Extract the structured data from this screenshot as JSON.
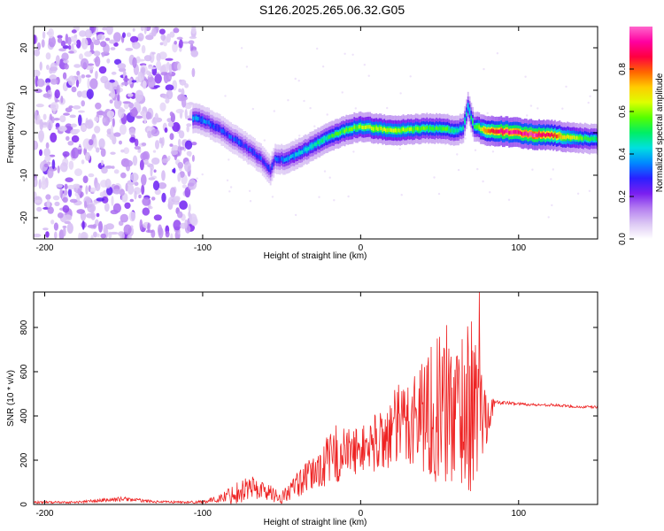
{
  "title": "S126.2025.265.06.32.G05",
  "colors": {
    "snr_line": "#ee2222",
    "frame": "#000000",
    "background": "#ffffff",
    "colormap": [
      "#ffffff",
      "#dcc8f4",
      "#b57ff0",
      "#7a1ff0",
      "#2a20ff",
      "#0088ff",
      "#00e0e0",
      "#00ee66",
      "#55ff00",
      "#ddff00",
      "#ffcc00",
      "#ff6600",
      "#ff0040",
      "#ff00a0",
      "#ff66cc"
    ]
  },
  "chart_data": [
    {
      "type": "heatmap",
      "title": "S126.2025.265.06.32.G05",
      "xlabel": "Height of straight line (km)",
      "ylabel": "Frequency (Hz)",
      "xlim": [
        -207,
        150
      ],
      "ylim": [
        -25,
        25
      ],
      "xticks": [
        "-200",
        "-100",
        "0",
        "100"
      ],
      "xtick_values": [
        -200,
        -100,
        0,
        100
      ],
      "yticks": [
        "-20",
        "-10",
        "0",
        "10",
        "20"
      ],
      "ytick_values": [
        -20,
        -10,
        0,
        10,
        20
      ],
      "colorbar": {
        "label": "Normalized spectral amplitude",
        "range": [
          0,
          1
        ],
        "ticks": [
          "0.0",
          "0.2",
          "0.4",
          "0.6",
          "0.8"
        ],
        "tick_values": [
          0.0,
          0.2,
          0.4,
          0.6,
          0.8
        ]
      },
      "ridge": {
        "x": [
          -106,
          -100,
          -90,
          -80,
          -70,
          -62,
          -57,
          -54,
          -48,
          -40,
          -30,
          -20,
          -10,
          0,
          10,
          20,
          30,
          40,
          50,
          60,
          65,
          68,
          72,
          80,
          90,
          100,
          110,
          120,
          130,
          140,
          150
        ],
        "y": [
          3.5,
          3,
          1,
          -1.5,
          -4,
          -6.5,
          -9,
          -6,
          -6.5,
          -5,
          -3,
          -1,
          0.5,
          1.5,
          1,
          0.5,
          0.8,
          1,
          1,
          0.5,
          1,
          6,
          1.5,
          0.5,
          0.3,
          0,
          -0.5,
          -0.5,
          -1,
          -1.3,
          -1.5
        ],
        "amplitude": [
          0.35,
          0.35,
          0.3,
          0.3,
          0.3,
          0.3,
          0.3,
          0.3,
          0.35,
          0.4,
          0.45,
          0.5,
          0.55,
          0.6,
          0.62,
          0.62,
          0.6,
          0.55,
          0.55,
          0.5,
          0.45,
          0.45,
          0.5,
          0.8,
          0.95,
          0.9,
          0.95,
          0.85,
          0.7,
          0.55,
          0.5
        ]
      },
      "noise_region_x": [
        -207,
        -105
      ]
    },
    {
      "type": "line",
      "xlabel": "Height of straight line (km)",
      "ylabel": "SNR (10 * v/v)",
      "xlim": [
        -207,
        150
      ],
      "ylim": [
        0,
        960
      ],
      "xticks": [
        "-200",
        "-100",
        "0",
        "100"
      ],
      "xtick_values": [
        -200,
        -100,
        0,
        100
      ],
      "yticks": [
        "0",
        "200",
        "400",
        "600",
        "800"
      ],
      "ytick_values": [
        0,
        200,
        400,
        600,
        800
      ],
      "series": [
        {
          "name": "SNR",
          "x": [
            -207,
            -180,
            -160,
            -150,
            -130,
            -110,
            -100,
            -90,
            -80,
            -70,
            -60,
            -50,
            -40,
            -30,
            -20,
            -15,
            -10,
            0,
            10,
            20,
            30,
            40,
            50,
            55,
            60,
            65,
            70,
            75,
            80,
            85,
            90,
            100,
            110,
            120,
            130,
            140,
            150
          ],
          "base": [
            10,
            10,
            20,
            25,
            12,
            10,
            12,
            25,
            50,
            80,
            60,
            30,
            90,
            140,
            200,
            230,
            230,
            250,
            280,
            330,
            380,
            420,
            430,
            440,
            430,
            450,
            440,
            420,
            400,
            460,
            460,
            455,
            450,
            450,
            445,
            440,
            440
          ],
          "spread": [
            5,
            5,
            10,
            10,
            5,
            5,
            8,
            15,
            50,
            60,
            40,
            30,
            60,
            80,
            120,
            150,
            120,
            100,
            140,
            180,
            220,
            280,
            350,
            380,
            360,
            380,
            400,
            300,
            120,
            10,
            8,
            6,
            6,
            6,
            6,
            6,
            6
          ],
          "peak_x": 75,
          "peak_y": 960
        }
      ]
    }
  ]
}
